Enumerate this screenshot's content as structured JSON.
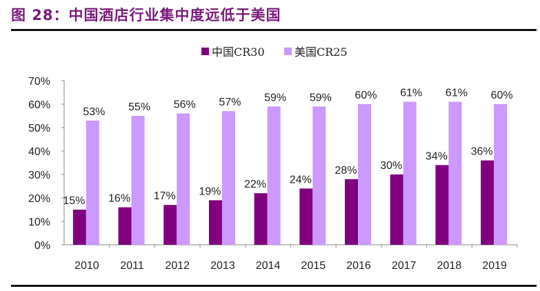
{
  "title": "图 28：中国酒店行业集中度远低于美国",
  "chart_data": {
    "type": "bar",
    "title": "",
    "xlabel": "",
    "ylabel": "",
    "categories": [
      "2010",
      "2011",
      "2012",
      "2013",
      "2014",
      "2015",
      "2016",
      "2017",
      "2018",
      "2019"
    ],
    "series": [
      {
        "name": "中国CR30",
        "color": "#800080",
        "values": [
          15,
          16,
          17,
          19,
          22,
          24,
          28,
          30,
          34,
          36
        ]
      },
      {
        "name": "美国CR25",
        "color": "#CC99FF",
        "values": [
          53,
          55,
          56,
          57,
          59,
          59,
          60,
          61,
          61,
          60
        ]
      }
    ],
    "ylim": [
      0,
      70
    ],
    "yticks": [
      "0%",
      "10%",
      "20%",
      "30%",
      "40%",
      "50%",
      "60%",
      "70%"
    ],
    "value_format": "percent",
    "legend": "top-center",
    "grid": false
  }
}
